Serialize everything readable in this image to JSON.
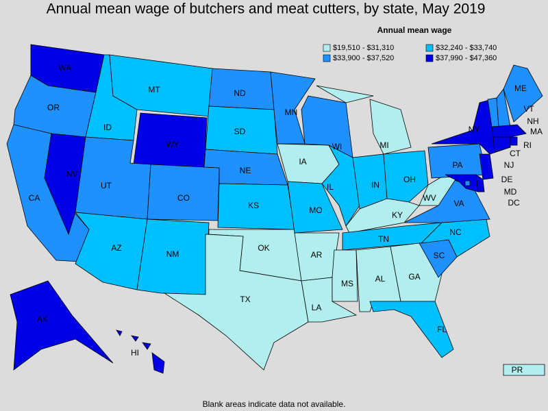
{
  "chart_data": {
    "type": "choropleth",
    "title": "Annual mean wage of butchers and meat cutters, by state, May 2019",
    "legend_title": "Annual mean wage",
    "legend": [
      {
        "label": "$19,510 - $31,310",
        "color": "#b2eeee"
      },
      {
        "label": "$32,240 - $33,740",
        "color": "#00bfff"
      },
      {
        "label": "$33,900 - $37,520",
        "color": "#1e90ff"
      },
      {
        "label": "$37,990 - $47,360",
        "color": "#0000e6"
      }
    ],
    "regions": [
      {
        "name": "WA",
        "bin": 3
      },
      {
        "name": "OR",
        "bin": 2
      },
      {
        "name": "CA",
        "bin": 2
      },
      {
        "name": "NV",
        "bin": 3
      },
      {
        "name": "ID",
        "bin": 1
      },
      {
        "name": "MT",
        "bin": 1
      },
      {
        "name": "WY",
        "bin": 3
      },
      {
        "name": "UT",
        "bin": 2
      },
      {
        "name": "CO",
        "bin": 2
      },
      {
        "name": "AZ",
        "bin": 1
      },
      {
        "name": "NM",
        "bin": 1
      },
      {
        "name": "ND",
        "bin": 2
      },
      {
        "name": "SD",
        "bin": 1
      },
      {
        "name": "NE",
        "bin": 2
      },
      {
        "name": "KS",
        "bin": 1
      },
      {
        "name": "OK",
        "bin": 0
      },
      {
        "name": "TX",
        "bin": 0
      },
      {
        "name": "MN",
        "bin": 2
      },
      {
        "name": "IA",
        "bin": 0
      },
      {
        "name": "MO",
        "bin": 1
      },
      {
        "name": "AR",
        "bin": 0
      },
      {
        "name": "LA",
        "bin": 0
      },
      {
        "name": "WI",
        "bin": 2
      },
      {
        "name": "IL",
        "bin": 1
      },
      {
        "name": "MI",
        "bin": 0
      },
      {
        "name": "IN",
        "bin": 1
      },
      {
        "name": "OH",
        "bin": 1
      },
      {
        "name": "KY",
        "bin": 0
      },
      {
        "name": "TN",
        "bin": 1
      },
      {
        "name": "MS",
        "bin": 0
      },
      {
        "name": "AL",
        "bin": 0
      },
      {
        "name": "GA",
        "bin": 0
      },
      {
        "name": "FL",
        "bin": 1
      },
      {
        "name": "SC",
        "bin": 2
      },
      {
        "name": "NC",
        "bin": 1
      },
      {
        "name": "VA",
        "bin": 2
      },
      {
        "name": "WV",
        "bin": 0
      },
      {
        "name": "PA",
        "bin": 2
      },
      {
        "name": "NY",
        "bin": 3
      },
      {
        "name": "VT",
        "bin": 2
      },
      {
        "name": "NH",
        "bin": 2
      },
      {
        "name": "ME",
        "bin": 2
      },
      {
        "name": "MA",
        "bin": 3
      },
      {
        "name": "RI",
        "bin": 3
      },
      {
        "name": "CT",
        "bin": 3
      },
      {
        "name": "NJ",
        "bin": 3
      },
      {
        "name": "DE",
        "bin": 3
      },
      {
        "name": "MD",
        "bin": 3
      },
      {
        "name": "DC",
        "bin": 2
      },
      {
        "name": "AK",
        "bin": 3
      },
      {
        "name": "HI",
        "bin": 3
      },
      {
        "name": "PR",
        "bin": 0
      }
    ],
    "note": "Blank areas indicate data not available."
  }
}
